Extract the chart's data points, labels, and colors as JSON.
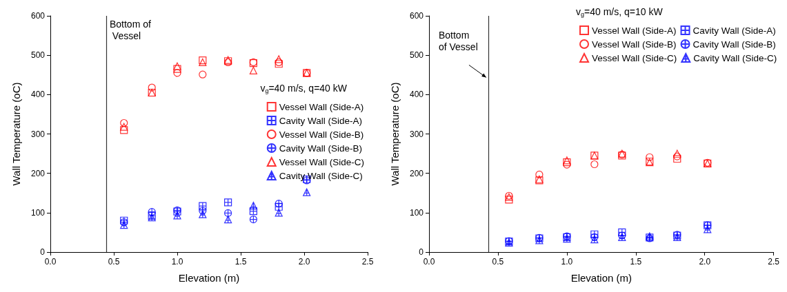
{
  "chart_data": [
    {
      "type": "scatter",
      "xlabel": "Elevation (m)",
      "ylabel": "Wall Temperature (oC)",
      "legend_title": "v$_{g}$=40 m/s, q=40 kW",
      "legend": "right",
      "grid": false,
      "xlim": [
        0,
        2.5
      ],
      "xticks": [
        {
          "value": 0,
          "label": "0.0"
        },
        0.5,
        {
          "value": 1,
          "label": "1.0"
        },
        1.5,
        {
          "value": 2,
          "label": "2.0"
        },
        2.5
      ],
      "ylim": [
        0,
        600
      ],
      "yticks": [
        0,
        100,
        200,
        300,
        400,
        500,
        600
      ],
      "x": [
        0.58,
        0.8,
        1.0,
        1.2,
        1.4,
        1.6,
        1.8,
        2.02
      ],
      "ref_lines": [
        {
          "axis": "x",
          "value": 0.44,
          "label": "Bottom of Vessel",
          "color": "#333333"
        }
      ],
      "series": [
        {
          "name": "Vessel Wall (Side-A)",
          "color": "#ff0000",
          "marker": "square",
          "values": [
            310,
            405,
            465,
            487,
            485,
            480,
            478,
            455
          ]
        },
        {
          "name": "Cavity Wall (Side-A)",
          "color": "#0000ff",
          "marker": "cross",
          "values": [
            80,
            92,
            103,
            117,
            126,
            104,
            115,
            185
          ]
        },
        {
          "name": "Vessel Wall (Side-B)",
          "color": "#ff0000",
          "marker": "circle",
          "values": [
            328,
            418,
            455,
            451,
            482,
            482,
            482,
            455
          ]
        },
        {
          "name": "Cavity Wall (Side-B)",
          "color": "#0000ff",
          "marker": "cross",
          "values": [
            76,
            102,
            106,
            105,
            99,
            83,
            123,
            182
          ]
        },
        {
          "name": "Vessel Wall (Side-C)",
          "color": "#ff0000",
          "marker": "triangle",
          "values": [
            318,
            405,
            472,
            482,
            488,
            461,
            490,
            455
          ]
        },
        {
          "name": "Cavity Wall (Side-C)",
          "color": "#0000ff",
          "marker": "cross",
          "values": [
            69,
            88,
            93,
            96,
            83,
            118,
            100,
            152
          ]
        }
      ]
    },
    {
      "type": "scatter",
      "xlabel": "Elevation (m)",
      "ylabel": "Wall Temperature (oC)",
      "legend_title": "v$_{g}$=40 m/s, q=10 kW",
      "legend": "top",
      "grid": false,
      "xlim": [
        0,
        2.5
      ],
      "xticks": [
        {
          "value": 0,
          "label": "0.0"
        },
        0.5,
        {
          "value": 1,
          "label": "1.0"
        },
        1.5,
        {
          "value": 2,
          "label": "2.0"
        },
        2.5
      ],
      "ylim": [
        0,
        600
      ],
      "yticks": [
        0,
        100,
        200,
        300,
        400,
        500,
        600
      ],
      "x": [
        0.58,
        0.8,
        1.0,
        1.2,
        1.4,
        1.6,
        1.8,
        2.02
      ],
      "ref_lines": [
        {
          "axis": "x",
          "value": 0.43,
          "color": "#333333"
        }
      ],
      "annotations": [
        {
          "text": "Bottom of Vessel",
          "x": 0.43,
          "y": 440
        }
      ],
      "series": [
        {
          "name": "Vessel Wall (Side-A)",
          "color": "#ff0000",
          "marker": "square",
          "values": [
            133,
            182,
            228,
            245,
            245,
            230,
            237,
            225
          ]
        },
        {
          "name": "Cavity Wall (Side-A)",
          "color": "#0000ff",
          "marker": "cross",
          "values": [
            27,
            35,
            38,
            45,
            50,
            37,
            42,
            68
          ]
        },
        {
          "name": "Vessel Wall (Side-B)",
          "color": "#ff0000",
          "marker": "circle",
          "values": [
            143,
            197,
            222,
            223,
            248,
            241,
            243,
            227
          ]
        },
        {
          "name": "Cavity Wall (Side-B)",
          "color": "#0000ff",
          "marker": "cross",
          "values": [
            28,
            36,
            40,
            38,
            42,
            35,
            44,
            68
          ]
        },
        {
          "name": "Vessel Wall (Side-C)",
          "color": "#ff0000",
          "marker": "triangle",
          "values": [
            140,
            185,
            233,
            245,
            250,
            228,
            250,
            225
          ]
        },
        {
          "name": "Cavity Wall (Side-C)",
          "color": "#0000ff",
          "marker": "cross",
          "values": [
            24,
            30,
            34,
            32,
            38,
            40,
            38,
            58
          ]
        }
      ]
    }
  ]
}
